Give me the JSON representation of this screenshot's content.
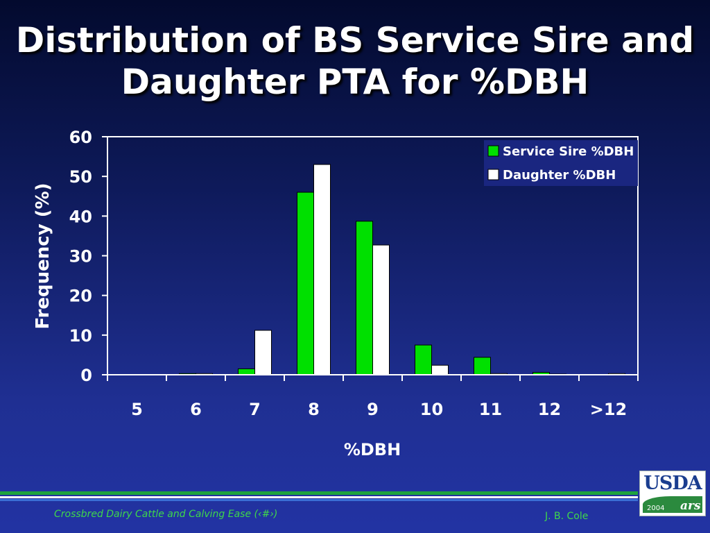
{
  "slide": {
    "title_line1": "Distribution of BS Service Sire and",
    "title_line2": "Daughter PTA for %DBH"
  },
  "footer": {
    "left_text": "Crossbred Dairy Cattle and Calving Ease (‹#›)",
    "right_text": "J. B. Cole"
  },
  "logo": {
    "name": "USDA",
    "year": "2004",
    "mark": "ars"
  },
  "colors": {
    "service_sire": "#00e000",
    "daughter": "#ffffff",
    "background": "#1f2f92",
    "footer_green": "#3fd84a"
  },
  "chart_data": {
    "type": "bar",
    "title": "",
    "xlabel": "%DBH",
    "ylabel": "Frequency (%)",
    "categories": [
      "5",
      "6",
      "7",
      "8",
      "9",
      "10",
      "11",
      "12",
      ">12"
    ],
    "ylim": [
      0,
      60
    ],
    "yticks": [
      "0",
      "10",
      "20",
      "30",
      "40",
      "50",
      "60"
    ],
    "legend_position": "top-right",
    "grid": false,
    "series": [
      {
        "name": "Service Sire %DBH",
        "values": [
          0,
          0.3,
          1.5,
          46,
          38.7,
          7.5,
          4.4,
          0.6,
          0
        ]
      },
      {
        "name": "Daughter %DBH",
        "values": [
          0,
          0.3,
          11.2,
          53,
          32.7,
          2.4,
          0.3,
          0.1,
          0.3
        ]
      }
    ]
  }
}
